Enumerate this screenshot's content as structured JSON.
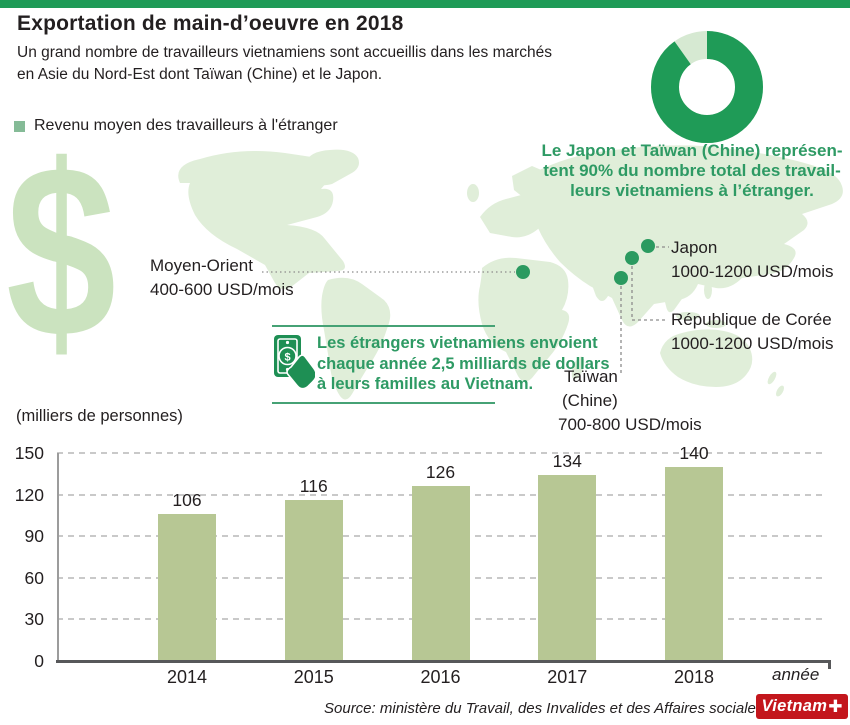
{
  "header": {
    "title": "Exportation de main-d’oeuvre en 2018",
    "subtitle": "Un grand nombre de travailleurs vietnamiens sont accueillis dans les marchés\nen Asie du Nord-Est dont Taïwan (Chine) et le Japon."
  },
  "legend": {
    "label": "Revenu moyen des travailleurs à l'étranger"
  },
  "donut": {
    "dark_percent": 90,
    "light_percent": 10,
    "caption": "Le Japon et Taïwan (Chine) représen-\ntent 90% du nombre total des travail-\nleurs vietnamiens à l’étranger."
  },
  "map": {
    "markers": [
      {
        "label": "Moyen-Orient",
        "value": "400-600 USD/mois"
      },
      {
        "label": "Japon",
        "value": "1000-1200 USD/mois"
      },
      {
        "label": "République de Corée",
        "value": "1000-1200 USD/mois"
      },
      {
        "label": "Taïwan",
        "label2": "(Chine)",
        "value": "700-800 USD/mois"
      }
    ]
  },
  "remittance": {
    "text": "Les étrangers vietnamiens envoient\nchaque année 2,5 milliards de dollars\nà leurs familles au Vietnam."
  },
  "decor": {
    "dollar_symbol": "$"
  },
  "chart_data": {
    "type": "bar",
    "categories": [
      "2014",
      "2015",
      "2016",
      "2017",
      "2018"
    ],
    "values": [
      106,
      116,
      126,
      134,
      140
    ],
    "title": "(milliers de personnes)",
    "xlabel": "année",
    "ylabel": "",
    "ylim": [
      0,
      150
    ],
    "yticks": [
      0,
      30,
      60,
      90,
      120,
      150
    ],
    "grid": true,
    "legend_position": "none",
    "bar_color": "#B7C794"
  },
  "footer": {
    "source": "Source: ministère du Travail, des Invalides et des Affaires sociales",
    "logo_text": "Vietnam",
    "logo_plus": "✚"
  },
  "colors": {
    "accent_green": "#1F9B57",
    "green_text": "#2E9A64",
    "map_green": "#E0EED9",
    "dollar_green": "#CBE3BF",
    "donut_light": "#D6E9D2",
    "bar_green": "#B7C794",
    "ink": "#231F20",
    "axis_gray": "#57585A",
    "logo_red": "#C3161C"
  }
}
